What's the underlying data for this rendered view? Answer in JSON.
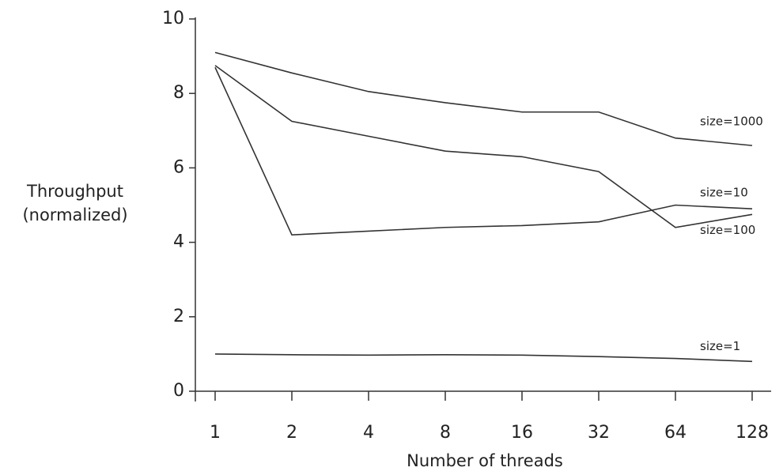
{
  "chart_data": {
    "type": "line",
    "x_label": "Number of threads",
    "y_label": [
      "Throughput",
      "(normalized)"
    ],
    "categories": [
      "1",
      "2",
      "4",
      "8",
      "16",
      "32",
      "64",
      "128"
    ],
    "series": [
      {
        "name": "size=1000",
        "color": "#333333",
        "values": [
          9.1,
          8.55,
          8.05,
          7.75,
          7.5,
          7.5,
          6.8,
          6.6
        ]
      },
      {
        "name": "size=10",
        "color": "#333333",
        "values": [
          8.7,
          4.2,
          4.3,
          4.4,
          4.45,
          4.55,
          5.0,
          4.9
        ]
      },
      {
        "name": "size=100",
        "color": "#333333",
        "values": [
          8.75,
          7.25,
          6.85,
          6.45,
          6.3,
          5.9,
          4.4,
          4.75
        ]
      },
      {
        "name": "size=1",
        "color": "#333333",
        "values": [
          1.0,
          0.98,
          0.97,
          0.98,
          0.97,
          0.93,
          0.88,
          0.8
        ]
      }
    ],
    "ylim": [
      0,
      10
    ],
    "yticks": [
      0,
      2,
      4,
      6,
      8,
      10
    ]
  }
}
